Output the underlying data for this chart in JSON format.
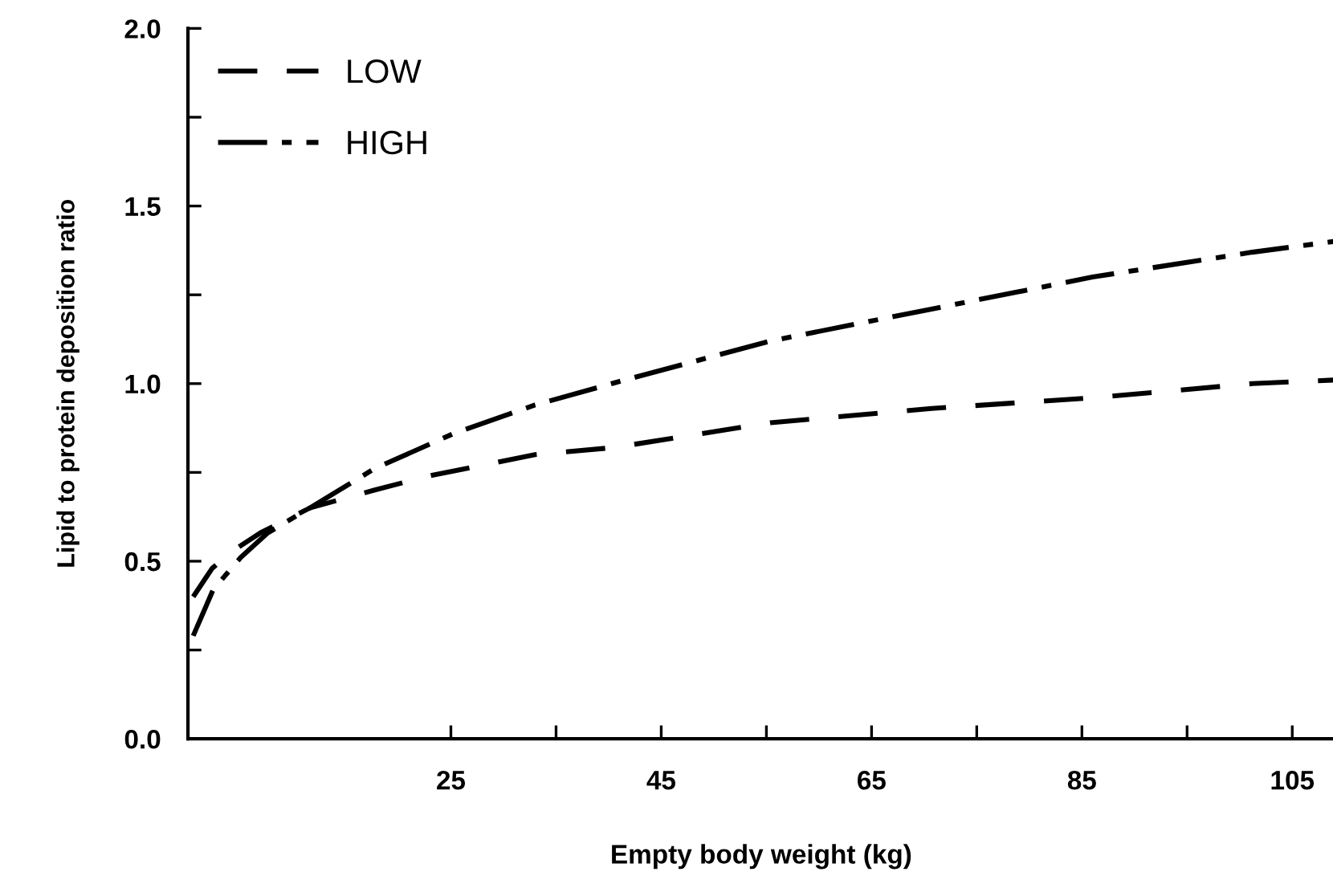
{
  "chart_data": {
    "type": "line",
    "xlabel": "Empty body weight (kg)",
    "ylabel": "Lipid to protein deposition ratio",
    "series": [
      {
        "name": "LOW",
        "color": "#000000",
        "line_style": "dashed",
        "x": [
          0.5,
          2.3,
          4.3,
          6.9,
          11.6,
          17.7,
          22.9,
          33,
          40.5,
          55.4,
          70.7,
          86,
          101.2,
          108.9
        ],
        "values": [
          0.4,
          0.48,
          0.53,
          0.58,
          0.65,
          0.7,
          0.74,
          0.8,
          0.82,
          0.89,
          0.93,
          0.96,
          1.0,
          1.01
        ]
      },
      {
        "name": "HIGH",
        "color": "#000000",
        "line_style": "dashdot",
        "x": [
          0.5,
          2.4,
          5,
          7.6,
          11.6,
          17.7,
          25.3,
          33,
          41.5,
          55.4,
          70.7,
          86,
          101.2,
          108.9
        ],
        "values": [
          0.29,
          0.42,
          0.51,
          0.58,
          0.65,
          0.76,
          0.86,
          0.94,
          1.01,
          1.12,
          1.21,
          1.3,
          1.37,
          1.4
        ]
      }
    ],
    "xlim": [
      0,
      109
    ],
    "ylim": [
      0,
      2.0
    ],
    "xticks": [
      25,
      {
        "value": 35,
        "label": null
      },
      45,
      {
        "value": 55,
        "label": null
      },
      65,
      {
        "value": 75,
        "label": null
      },
      85,
      {
        "value": 95,
        "label": null
      },
      105
    ],
    "yticks": [
      {
        "value": 0,
        "label": "0.0"
      },
      {
        "value": 0.25,
        "label": null
      },
      0.5,
      {
        "value": 0.75,
        "label": null
      },
      {
        "value": 1.0,
        "label": "1.0"
      },
      {
        "value": 1.25,
        "label": null
      },
      1.5,
      {
        "value": 1.75,
        "label": null
      },
      {
        "value": 2.0,
        "label": "2.0"
      }
    ],
    "grid": false,
    "legend": "top left",
    "marker": "none"
  }
}
